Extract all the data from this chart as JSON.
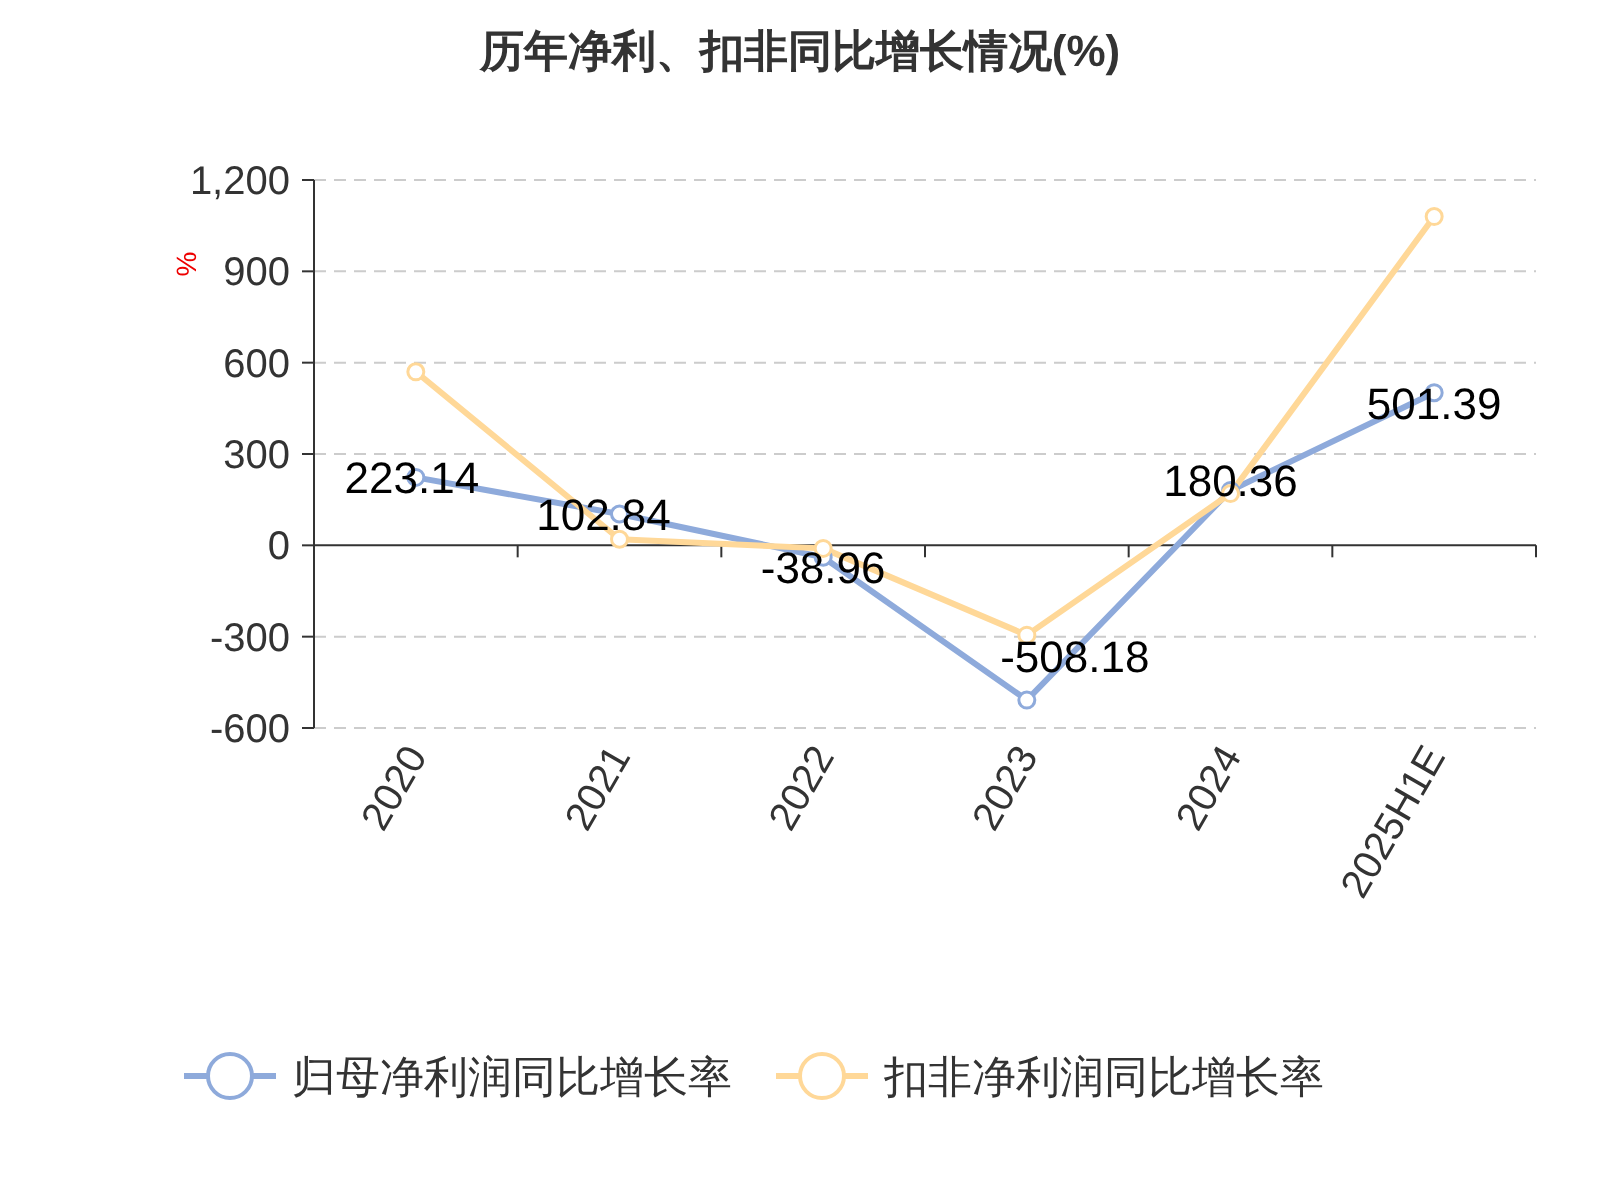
{
  "chart_data": {
    "type": "line",
    "title": "历年净利、扣非同比增长情况(%)",
    "ylabel": "%",
    "categories": [
      "2020",
      "2021",
      "2022",
      "2023",
      "2024",
      "2025H1E"
    ],
    "series": [
      {
        "name": "归母净利润同比增长率",
        "color": "#8eaadb",
        "values": [
          223.14,
          102.84,
          -38.96,
          -508.18,
          180.36,
          501.39
        ],
        "value_labels": [
          "223.14",
          "102.84",
          "-38.96",
          "-508.18",
          "180.36",
          "501.39"
        ]
      },
      {
        "name": "扣非净利润同比增长率",
        "color": "#ffd898",
        "values": [
          570,
          20,
          -10,
          -295,
          170,
          1080
        ]
      }
    ],
    "ylim": [
      -600,
      1200
    ],
    "yticks": [
      -600,
      -300,
      0,
      300,
      600,
      900,
      {
        "value": 1200,
        "label": "1,200"
      }
    ],
    "grid": "y",
    "legend": "bottom",
    "marker": "circle",
    "line_style": "solid"
  }
}
